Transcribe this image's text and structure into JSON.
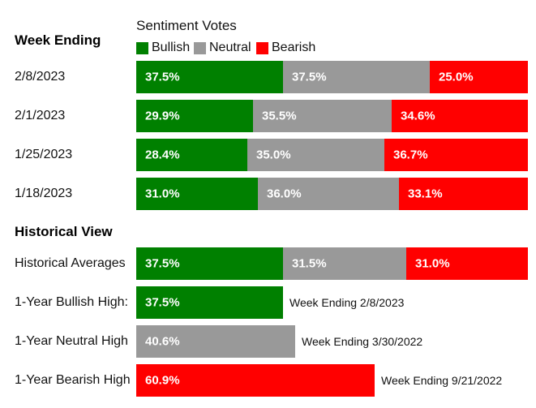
{
  "colors": {
    "bullish": "#008000",
    "neutral": "#999999",
    "bearish": "#ff0000"
  },
  "headings": {
    "week_ending": "Week Ending",
    "historical_view": "Historical View"
  },
  "legend": {
    "title": "Sentiment Votes",
    "items": [
      {
        "key": "bullish",
        "label": "Bullish"
      },
      {
        "key": "neutral",
        "label": "Neutral"
      },
      {
        "key": "bearish",
        "label": "Bearish"
      }
    ]
  },
  "chart_data": {
    "type": "bar",
    "stacked": true,
    "orientation": "horizontal",
    "title": "Sentiment Votes",
    "series_names": [
      "Bullish",
      "Neutral",
      "Bearish"
    ],
    "weekly": [
      {
        "label": "2/8/2023",
        "bullish": 37.5,
        "neutral": 37.5,
        "bearish": 25.0,
        "texts": [
          "37.5%",
          "37.5%",
          "25.0%"
        ]
      },
      {
        "label": "2/1/2023",
        "bullish": 29.9,
        "neutral": 35.5,
        "bearish": 34.6,
        "texts": [
          "29.9%",
          "35.5%",
          "34.6%"
        ]
      },
      {
        "label": "1/25/2023",
        "bullish": 28.4,
        "neutral": 35.0,
        "bearish": 36.7,
        "texts": [
          "28.4%",
          "35.0%",
          "36.7%"
        ]
      },
      {
        "label": "1/18/2023",
        "bullish": 31.0,
        "neutral": 36.0,
        "bearish": 33.1,
        "texts": [
          "31.0%",
          "36.0%",
          "33.1%"
        ]
      }
    ],
    "historical_averages": {
      "label": "Historical Averages",
      "bullish": 37.5,
      "neutral": 31.5,
      "bearish": 31.0,
      "texts": [
        "37.5%",
        "31.5%",
        "31.0%"
      ]
    },
    "highs": [
      {
        "label": "1-Year Bullish High:",
        "series": "bullish",
        "value": 37.5,
        "text": "37.5%",
        "note": "Week Ending 2/8/2023"
      },
      {
        "label": "1-Year Neutral High",
        "series": "neutral",
        "value": 40.6,
        "text": "40.6%",
        "note": "Week Ending 3/30/2022"
      },
      {
        "label": "1-Year Bearish High",
        "series": "bearish",
        "value": 60.9,
        "text": "60.9%",
        "note": "Week Ending 9/21/2022"
      }
    ]
  }
}
